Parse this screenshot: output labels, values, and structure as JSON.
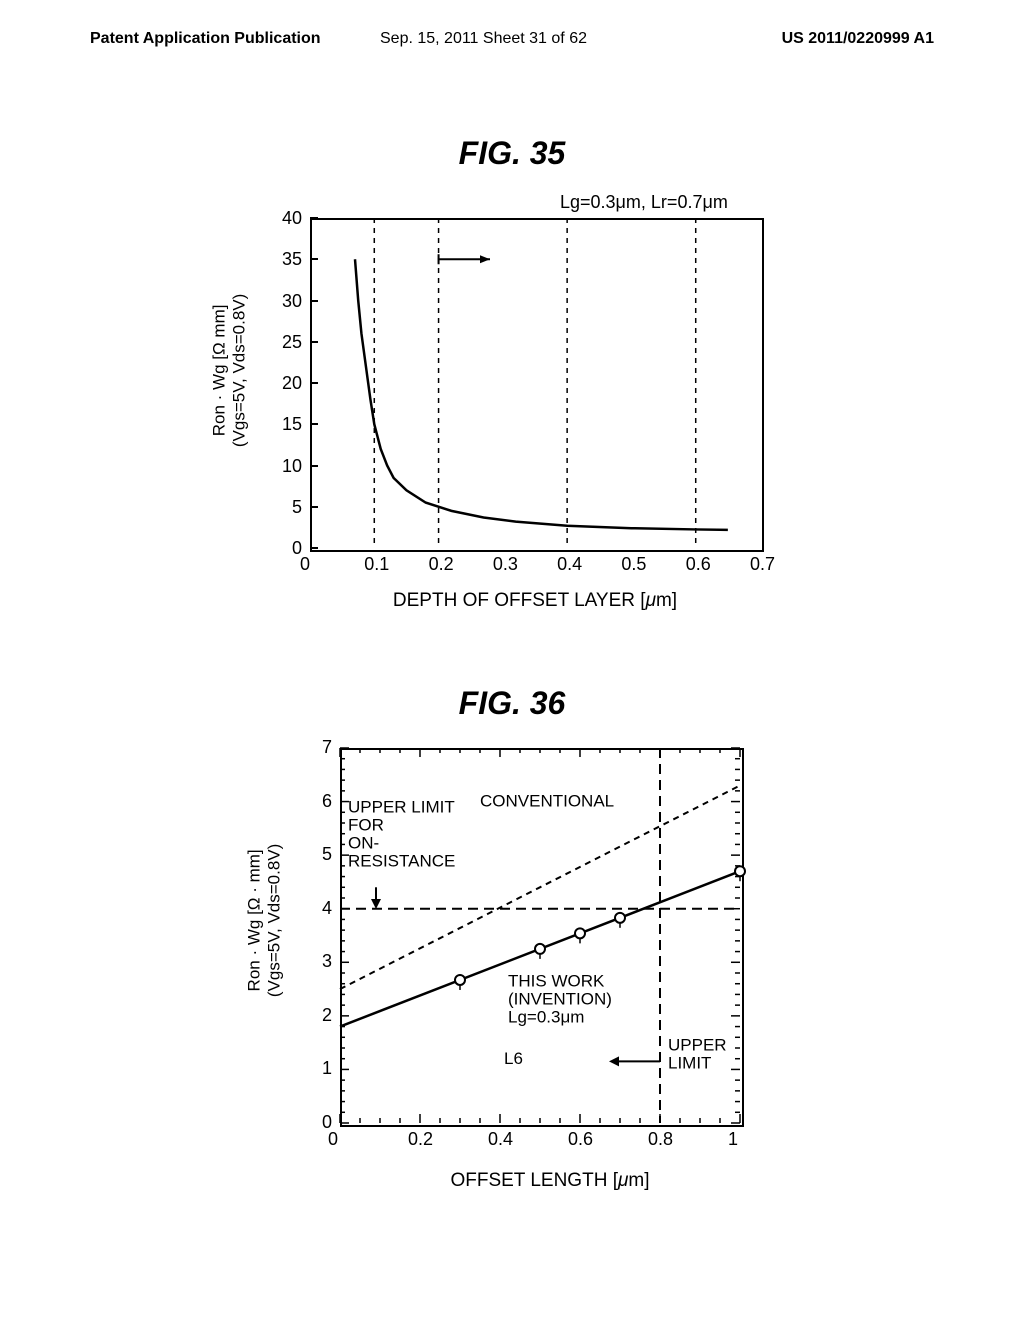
{
  "header": {
    "left": "Patent Application Publication",
    "center": "Sep. 15, 2011  Sheet 31 of 62",
    "right": "US 2011/0220999 A1"
  },
  "fig35": {
    "title": "FIG.  35",
    "subtitle": "Lg=0.3μm, Lr=0.7μm",
    "ylabel": "Ron · Wg [Ω mm]\n(Vgs=5V, Vds=0.8V)",
    "xlabel": "DEPTH OF OFFSET LAYER [μm]",
    "xlim": [
      0,
      0.7
    ],
    "ylim": [
      0,
      40
    ],
    "xticks": [
      0,
      0.1,
      0.2,
      0.3,
      0.4,
      0.5,
      0.6,
      0.7
    ],
    "yticks": [
      0,
      5,
      10,
      15,
      20,
      25,
      30,
      35,
      40
    ],
    "curve": [
      [
        0.07,
        35
      ],
      [
        0.075,
        30
      ],
      [
        0.08,
        26
      ],
      [
        0.087,
        22
      ],
      [
        0.094,
        18
      ],
      [
        0.1,
        15
      ],
      [
        0.11,
        12
      ],
      [
        0.12,
        10
      ],
      [
        0.13,
        8.5
      ],
      [
        0.15,
        7
      ],
      [
        0.18,
        5.5
      ],
      [
        0.22,
        4.5
      ],
      [
        0.27,
        3.7
      ],
      [
        0.32,
        3.2
      ],
      [
        0.4,
        2.7
      ],
      [
        0.5,
        2.4
      ],
      [
        0.6,
        2.25
      ],
      [
        0.65,
        2.2
      ]
    ],
    "vlines": [
      0.1,
      0.2,
      0.4,
      0.6
    ],
    "arrow_from": [
      0.2,
      35
    ],
    "arrow_to": [
      0.28,
      35
    ],
    "line_color": "#000000",
    "line_width": 2.5,
    "dash_color": "#000000"
  },
  "fig36": {
    "title": "FIG.  36",
    "ylabel": "Ron · Wg [Ω · mm]\n(Vgs=5V, Vds=0.8V)",
    "xlabel": "OFFSET LENGTH [μm]",
    "xlim": [
      0,
      1
    ],
    "ylim": [
      0,
      7
    ],
    "xticks": [
      0,
      0.2,
      0.4,
      0.6,
      0.8,
      1
    ],
    "yticks": [
      0,
      1,
      2,
      3,
      4,
      5,
      6,
      7
    ],
    "conventional_line": [
      [
        0.0,
        2.5
      ],
      [
        1.0,
        6.3
      ]
    ],
    "thiswork_line": [
      [
        0.0,
        1.8
      ],
      [
        1.0,
        4.7
      ]
    ],
    "thiswork_points": [
      [
        0.3,
        2.67
      ],
      [
        0.5,
        3.25
      ],
      [
        0.6,
        3.54
      ],
      [
        0.7,
        3.83
      ],
      [
        1.0,
        4.7
      ]
    ],
    "hline_y": 4,
    "vline_x": 0.8,
    "annotations": {
      "conventional": "CONVENTIONAL",
      "upper_for_on": "UPPER LIMIT\nFOR\nON-\nRESISTANCE",
      "thiswork": "THIS WORK\n(INVENTION)\nLg=0.3μm",
      "upper_limit": "UPPER\nLIMIT",
      "l6": "L6"
    },
    "line_color": "#000000",
    "line_width": 2.5,
    "dash_color": "#000000"
  }
}
